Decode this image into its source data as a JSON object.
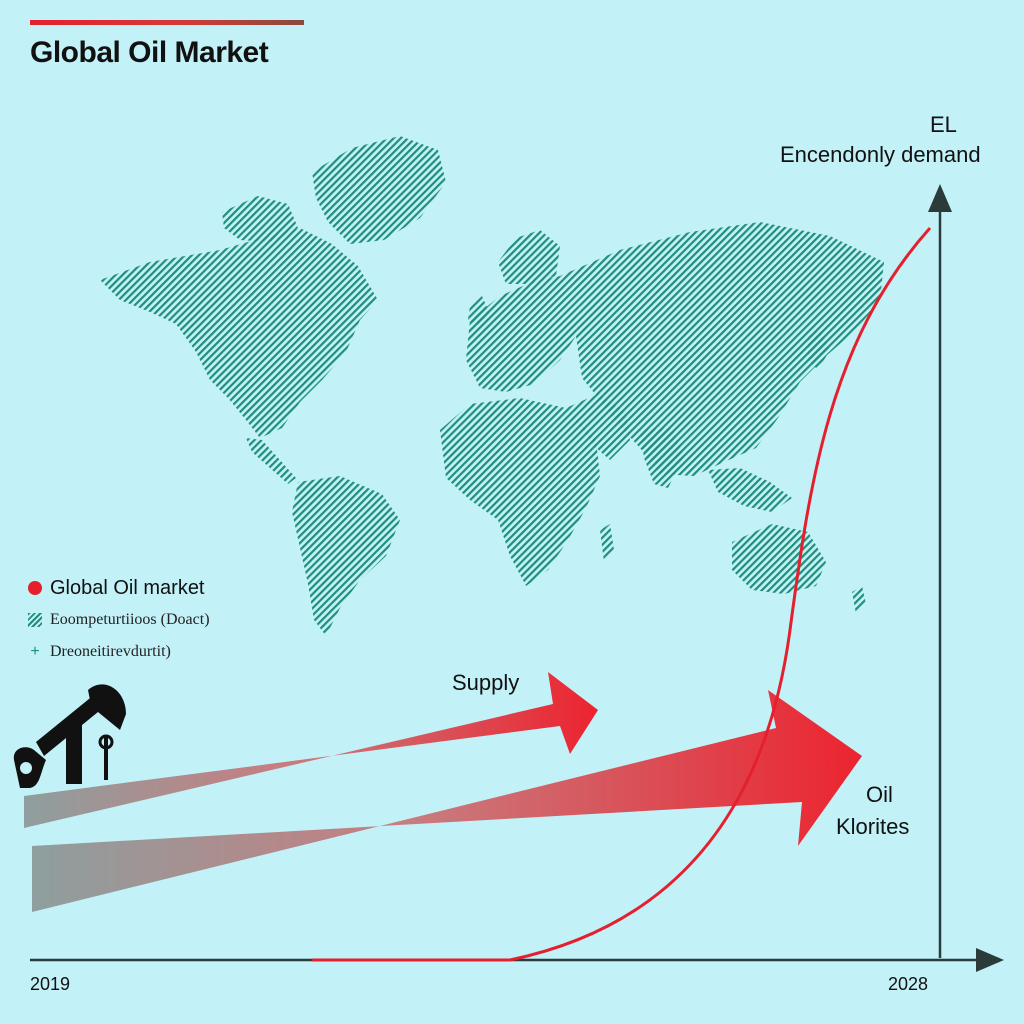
{
  "title": "Global Oil Market",
  "legend": {
    "items": [
      {
        "label": "Global Oil market",
        "icon": "red-dot"
      },
      {
        "label": "Eoompeturtiioos (Doact)",
        "icon": "hatch-swatch"
      },
      {
        "label": "Dreoneitirevdurtit)",
        "icon": "plus-mark"
      }
    ]
  },
  "labels": {
    "el": "EL",
    "demand": "Encendonly demand",
    "supply": "Supply",
    "oil": "Oil",
    "klorites": "Klorites"
  },
  "timeline": {
    "start": "2019",
    "end": "2028"
  },
  "colors": {
    "background": "#c3f1f8",
    "accent_red": "#e5202e",
    "map_teal": "#1f8f7a",
    "axis": "#2a3b3a"
  }
}
